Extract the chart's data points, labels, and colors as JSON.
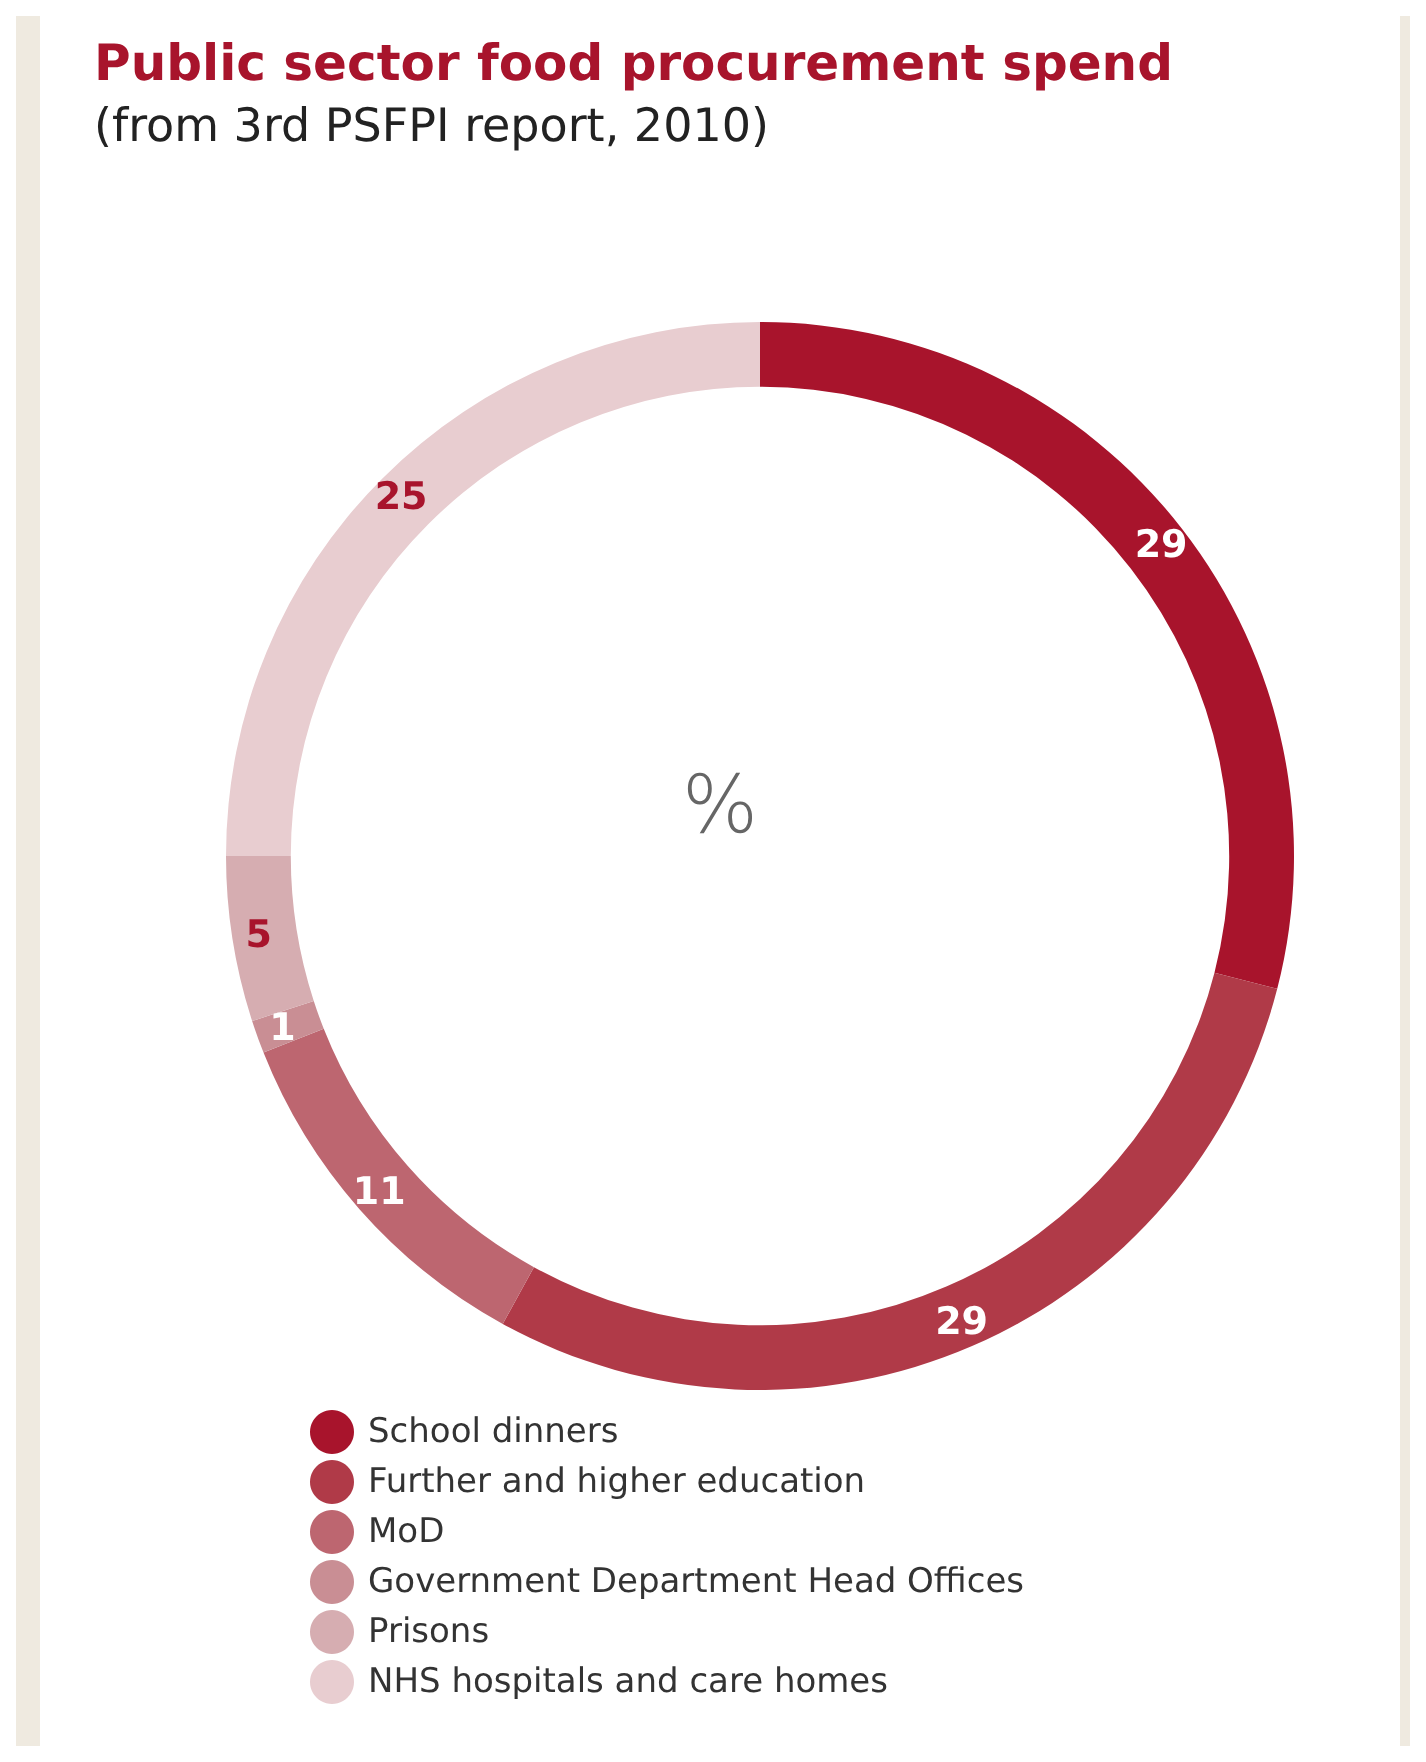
{
  "chart_data": {
    "type": "donut",
    "title": "Public sector food procurement spend",
    "subtitle": "(from 3rd PSFPI report, 2010)",
    "categories": [
      "School dinners",
      "Further and higher education",
      "MoD",
      "Government Department Head Offices",
      "Prisons",
      "NHS hospitals and care homes"
    ],
    "values": [
      29,
      29,
      11,
      1,
      5,
      25
    ],
    "colors": [
      "#a8142c",
      "#b03a48",
      "#bd6670",
      "#c98e94",
      "#d6adb1",
      "#e8cdd0"
    ],
    "data_labels": true,
    "annotations": [
      "%"
    ],
    "legend": "bottom left"
  }
}
